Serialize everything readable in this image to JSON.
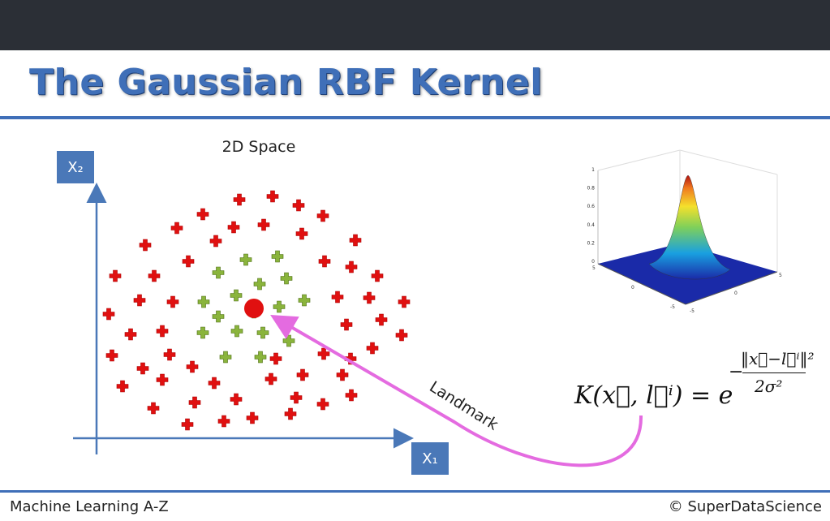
{
  "header": {
    "title": "The Gaussian RBF Kernel"
  },
  "plot": {
    "title": "2D Space",
    "y_axis_label": "X₂",
    "x_axis_label": "X₁",
    "annotation": "Landmark"
  },
  "surface_plot": {
    "z_ticks": [
      "1",
      "0.8",
      "0.6",
      "0.4",
      "0.2",
      "0"
    ],
    "left_ticks": [
      "5",
      "0",
      "-5"
    ],
    "right_ticks": [
      "-5",
      "0",
      "5"
    ]
  },
  "formula": {
    "lhs": "K(x⃗, l⃗ⁱ) = e",
    "sign": "−",
    "numerator": "‖x⃗−l⃗ⁱ‖²",
    "denominator": "2σ²"
  },
  "footer": {
    "left": "Machine Learning A-Z",
    "right": "© SuperDataScience"
  }
}
